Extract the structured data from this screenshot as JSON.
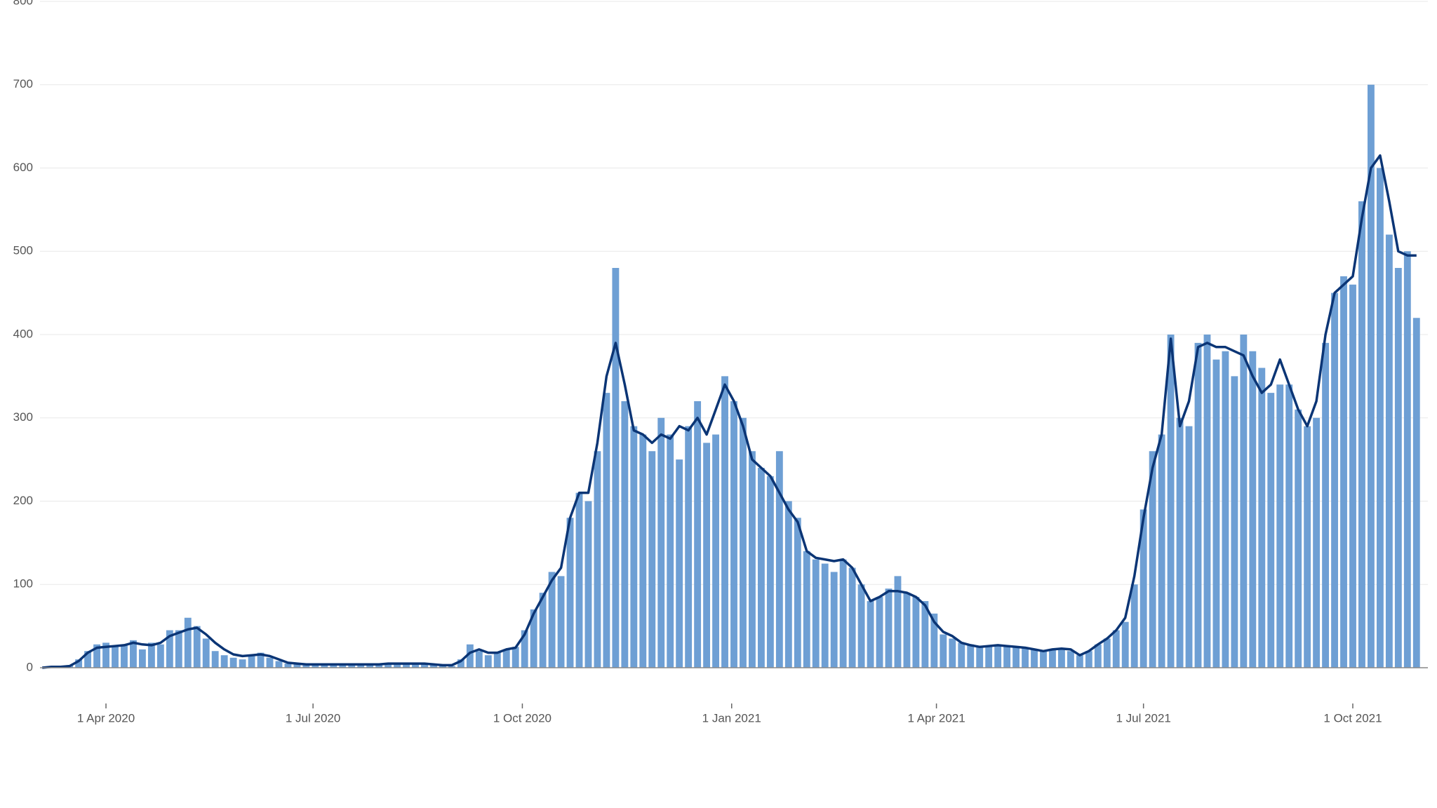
{
  "chart_data": {
    "type": "bar",
    "x": [
      "2020-03-04",
      "2020-03-08",
      "2020-03-12",
      "2020-03-16",
      "2020-03-20",
      "2020-03-24",
      "2020-03-28",
      "2020-04-01",
      "2020-04-05",
      "2020-04-09",
      "2020-04-13",
      "2020-04-17",
      "2020-04-21",
      "2020-04-25",
      "2020-04-29",
      "2020-05-03",
      "2020-05-07",
      "2020-05-11",
      "2020-05-15",
      "2020-05-19",
      "2020-05-23",
      "2020-05-27",
      "2020-05-31",
      "2020-06-04",
      "2020-06-08",
      "2020-06-12",
      "2020-06-16",
      "2020-06-20",
      "2020-06-24",
      "2020-06-28",
      "2020-07-02",
      "2020-07-06",
      "2020-07-10",
      "2020-07-14",
      "2020-07-18",
      "2020-07-22",
      "2020-07-26",
      "2020-07-30",
      "2020-08-03",
      "2020-08-07",
      "2020-08-11",
      "2020-08-15",
      "2020-08-19",
      "2020-08-23",
      "2020-08-27",
      "2020-08-31",
      "2020-09-04",
      "2020-09-08",
      "2020-09-12",
      "2020-09-16",
      "2020-09-20",
      "2020-09-24",
      "2020-09-28",
      "2020-10-02",
      "2020-10-06",
      "2020-10-10",
      "2020-10-14",
      "2020-10-18",
      "2020-10-22",
      "2020-10-26",
      "2020-10-30",
      "2020-11-03",
      "2020-11-07",
      "2020-11-11",
      "2020-11-15",
      "2020-11-19",
      "2020-11-23",
      "2020-11-27",
      "2020-12-01",
      "2020-12-05",
      "2020-12-09",
      "2020-12-13",
      "2020-12-17",
      "2020-12-21",
      "2020-12-25",
      "2020-12-29",
      "2021-01-02",
      "2021-01-06",
      "2021-01-10",
      "2021-01-14",
      "2021-01-18",
      "2021-01-22",
      "2021-01-26",
      "2021-01-30",
      "2021-02-03",
      "2021-02-07",
      "2021-02-11",
      "2021-02-15",
      "2021-02-19",
      "2021-02-23",
      "2021-02-27",
      "2021-03-03",
      "2021-03-07",
      "2021-03-11",
      "2021-03-15",
      "2021-03-19",
      "2021-03-23",
      "2021-03-27",
      "2021-03-31",
      "2021-04-04",
      "2021-04-08",
      "2021-04-12",
      "2021-04-16",
      "2021-04-20",
      "2021-04-24",
      "2021-04-28",
      "2021-05-02",
      "2021-05-06",
      "2021-05-10",
      "2021-05-14",
      "2021-05-18",
      "2021-05-22",
      "2021-05-26",
      "2021-05-30",
      "2021-06-03",
      "2021-06-07",
      "2021-06-11",
      "2021-06-15",
      "2021-06-19",
      "2021-06-23",
      "2021-06-27",
      "2021-07-01",
      "2021-07-05",
      "2021-07-09",
      "2021-07-13",
      "2021-07-17",
      "2021-07-21",
      "2021-07-25",
      "2021-07-29",
      "2021-08-02",
      "2021-08-06",
      "2021-08-10",
      "2021-08-14",
      "2021-08-18",
      "2021-08-22",
      "2021-08-26",
      "2021-08-30",
      "2021-09-03",
      "2021-09-07",
      "2021-09-11",
      "2021-09-15",
      "2021-09-19",
      "2021-09-23",
      "2021-09-27",
      "2021-10-01",
      "2021-10-05",
      "2021-10-09",
      "2021-10-13",
      "2021-10-17",
      "2021-10-21",
      "2021-10-25",
      "2021-10-29"
    ],
    "series": [
      {
        "color": "#6e9fd4",
        "values": [
          0,
          1,
          2,
          3,
          10,
          20,
          28,
          30,
          25,
          28,
          33,
          22,
          30,
          28,
          45,
          45,
          60,
          50,
          35,
          20,
          15,
          12,
          10,
          15,
          18,
          12,
          8,
          5,
          4,
          3,
          4,
          5,
          3,
          5,
          4,
          4,
          5,
          5,
          5,
          6,
          5,
          6,
          4,
          5,
          3,
          2,
          10,
          28,
          20,
          15,
          18,
          22,
          25,
          45,
          70,
          90,
          115,
          110,
          180,
          210,
          200,
          260,
          330,
          480,
          320,
          290,
          280,
          260,
          300,
          280,
          250,
          290,
          320,
          270,
          280,
          350,
          320,
          300,
          260,
          240,
          230,
          260,
          200,
          180,
          140,
          130,
          125,
          115,
          130,
          120,
          100,
          80,
          85,
          95,
          110,
          90,
          85,
          80,
          65,
          40,
          35,
          30,
          28,
          25,
          25,
          28,
          25,
          26,
          24,
          22,
          20,
          22,
          24,
          20,
          15,
          20,
          28,
          35,
          45,
          55,
          100,
          190,
          260,
          280,
          400,
          300,
          290,
          390,
          400,
          370,
          380,
          350,
          400,
          380,
          360,
          330,
          340,
          340,
          310,
          290,
          300,
          390,
          450,
          470,
          460,
          560,
          700,
          600,
          520,
          480,
          500,
          420
        ]
      },
      {
        "type": "line",
        "color": "#0b3575",
        "values": [
          0,
          1,
          1,
          2,
          8,
          18,
          24,
          25,
          26,
          27,
          30,
          28,
          27,
          30,
          38,
          42,
          46,
          48,
          40,
          30,
          22,
          16,
          14,
          15,
          16,
          14,
          10,
          6,
          5,
          4,
          4,
          4,
          4,
          4,
          4,
          4,
          4,
          4,
          5,
          5,
          5,
          5,
          5,
          4,
          3,
          3,
          8,
          18,
          22,
          18,
          18,
          22,
          24,
          40,
          65,
          85,
          105,
          120,
          180,
          210,
          210,
          270,
          350,
          390,
          340,
          285,
          280,
          270,
          280,
          275,
          290,
          285,
          300,
          280,
          310,
          340,
          320,
          290,
          250,
          240,
          230,
          210,
          190,
          175,
          140,
          132,
          130,
          128,
          130,
          120,
          100,
          80,
          85,
          92,
          92,
          90,
          85,
          75,
          55,
          43,
          38,
          30,
          27,
          25,
          26,
          27,
          26,
          25,
          24,
          22,
          20,
          22,
          23,
          22,
          15,
          20,
          28,
          35,
          45,
          60,
          110,
          180,
          240,
          280,
          395,
          290,
          320,
          385,
          390,
          385,
          385,
          380,
          375,
          350,
          330,
          340,
          370,
          340,
          310,
          290,
          320,
          400,
          450,
          460,
          470,
          540,
          600,
          615,
          560,
          500,
          495,
          495
        ]
      }
    ],
    "xlim": [
      "2020-03-03",
      "2021-11-03"
    ],
    "xticks": [
      {
        "value": "2020-04-01",
        "label": "1 Apr 2020"
      },
      {
        "value": "2020-07-01",
        "label": "1 Jul 2020"
      },
      {
        "value": "2020-10-01",
        "label": "1 Oct 2020"
      },
      {
        "value": "2021-01-01",
        "label": "1 Jan 2021"
      },
      {
        "value": "2021-04-01",
        "label": "1 Apr 2021"
      },
      {
        "value": "2021-07-01",
        "label": "1 Jul 2021"
      },
      {
        "value": "2021-10-01",
        "label": "1 Oct 2021"
      }
    ],
    "ylim": [
      0,
      800
    ],
    "yticks": [
      0,
      100,
      200,
      300,
      400,
      500,
      600,
      700,
      800
    ],
    "grid": true
  }
}
